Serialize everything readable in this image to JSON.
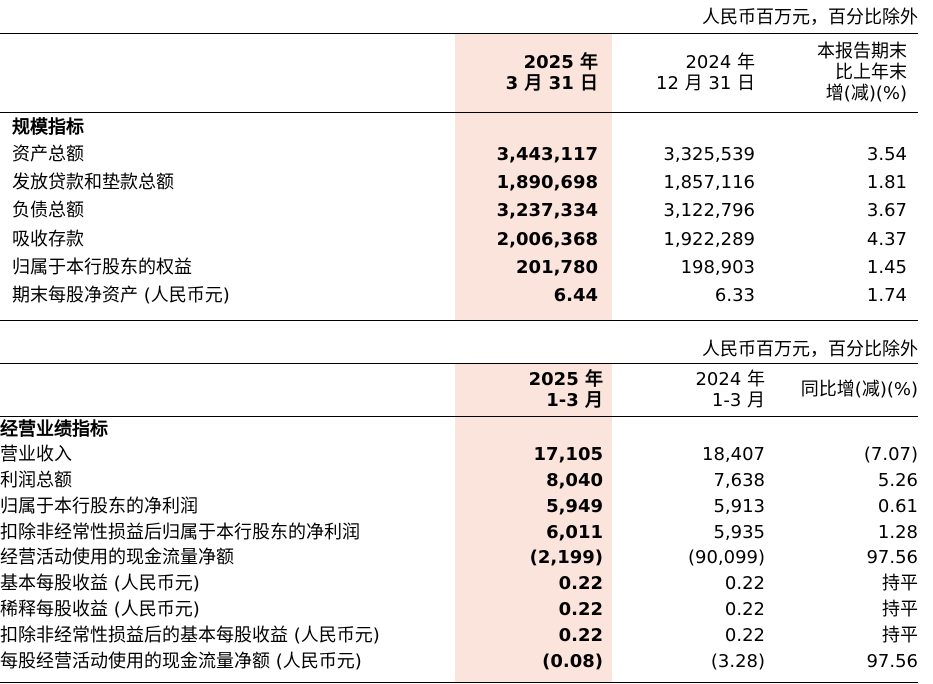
{
  "table1": {
    "unit_note": "人民币百万元，百分比除外",
    "headers": [
      [
        "2025 年",
        "3 月 31 日"
      ],
      [
        "2024 年",
        "12 月 31 日"
      ],
      [
        "本报告期末",
        "比上年末",
        "增(减)(%)"
      ]
    ],
    "section": "规模指标",
    "rows": [
      [
        "资产总额",
        "3,443,117",
        "3,325,539",
        "3.54"
      ],
      [
        "发放贷款和垫款总额",
        "1,890,698",
        "1,857,116",
        "1.81"
      ],
      [
        "负债总额",
        "3,237,334",
        "3,122,796",
        "3.67"
      ],
      [
        "吸收存款",
        "2,006,368",
        "1,922,289",
        "4.37"
      ],
      [
        "归属于本行股东的权益",
        "201,780",
        "198,903",
        "1.45"
      ],
      [
        "期末每股净资产 (人民币元)",
        "6.44",
        "6.33",
        "1.74"
      ]
    ]
  },
  "table2": {
    "unit_note": "人民币百万元，百分比除外",
    "headers": [
      [
        "2025 年",
        "1-3 月"
      ],
      [
        "2024 年",
        "1-3 月"
      ],
      [
        "同比增(减)(%)"
      ]
    ],
    "section": "经营业绩指标",
    "rows": [
      [
        "营业收入",
        "17,105",
        "18,407",
        "(7.07)"
      ],
      [
        "利润总额",
        "8,040",
        "7,638",
        "5.26"
      ],
      [
        "归属于本行股东的净利润",
        "5,949",
        "5,913",
        "0.61"
      ],
      [
        "扣除非经常性损益后归属于本行股东的净利润",
        "6,011",
        "5,935",
        "1.28"
      ],
      [
        "经营活动使用的现金流量净额",
        "(2,199)",
        "(90,099)",
        "97.56"
      ],
      [
        "基本每股收益 (人民币元)",
        "0.22",
        "0.22",
        "持平"
      ],
      [
        "稀释每股收益 (人民币元)",
        "0.22",
        "0.22",
        "持平"
      ],
      [
        "扣除非经常性损益后的基本每股收益 (人民币元)",
        "0.22",
        "0.22",
        "持平"
      ],
      [
        "每股经营活动使用的现金流量净额 (人民币元)",
        "(0.08)",
        "(3.28)",
        "97.56"
      ]
    ]
  }
}
